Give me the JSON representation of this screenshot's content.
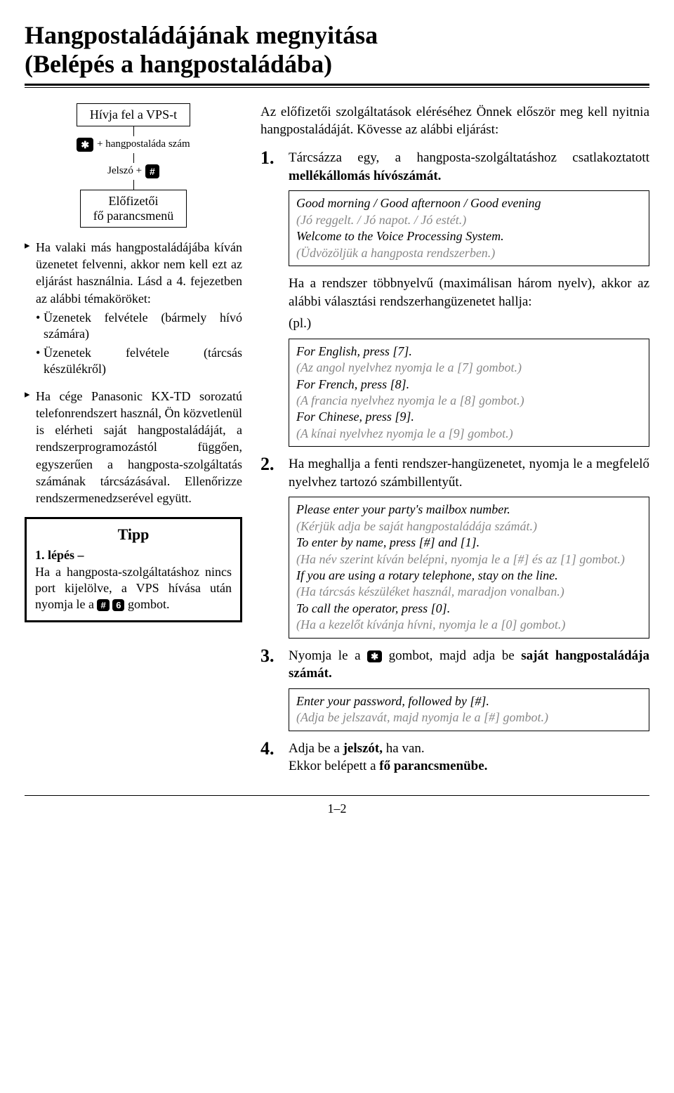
{
  "title_line1": "Hangpostaládájának megnyitása",
  "title_line2": "(Belépés a hangpostaládába)",
  "flowchart": {
    "box1": "Hívja fel a VPS-t",
    "row2_after": "+ hangpostaláda szám",
    "row3_before": "Jelszó + ",
    "box4_line1": "Előfizetői",
    "box4_line2": "fő parancsmenü"
  },
  "left_bullets": {
    "b1": "Ha valaki más hangpostaládájába kíván üzenetet felvenni, akkor nem kell ezt az eljárást használnia. Lásd a 4. fejezetben az alábbi témaköröket:",
    "b1s1": "Üzenetek felvétele (bármely hívó számára)",
    "b1s2": "Üzenetek felvétele (tárcsás készülékről)",
    "b2": "Ha cége Panasonic KX-TD sorozatú telefonrendszert használ, Ön közvetlenül is elérheti saját hangpostaládáját, a rendszerprogramozástól függően, egyszerűen a hangposta-szolgáltatás számának tárcsázásával. Ellenőrizze rendszermenedzserével együtt."
  },
  "tipp": {
    "title": "Tipp",
    "bold": "1. lépés –",
    "text1": "Ha a hangposta-szolgáltatáshoz nincs port kijelölve, a VPS hívása után nyomja le a ",
    "key1": "#",
    "key2": "6",
    "text2": " gombot."
  },
  "lead": "Az előfizetői szolgáltatások eléréséhez Önnek először meg kell nyitnia hangpostaládáját. Kövesse az alábbi eljárást:",
  "steps": {
    "s1_num": "1.",
    "s1": "Tárcsázza egy, a hangposta-szolgáltatáshoz csatlakoztatott ",
    "s1_bold": "mellékállomás hívószámát.",
    "prompt1_en1": "Good morning / Good afternoon / Good evening",
    "prompt1_hu1": "(Jó reggelt. / Jó napot. / Jó estét.)",
    "prompt1_en2": "Welcome to the Voice Processing System.",
    "prompt1_hu2": "(Üdvözöljük a hangposta rendszerben.)",
    "inter1a": "Ha a rendszer többnyelvű (maximálisan három nyelv), akkor az alábbi választási rendszerhangüzenetet hallja:",
    "inter1b": "(pl.)",
    "prompt2_en1": "For English, press [7].",
    "prompt2_hu1": "(Az angol nyelvhez nyomja le a [7] gombot.)",
    "prompt2_en2": "For French, press [8].",
    "prompt2_hu2": "(A francia nyelvhez nyomja le a [8] gombot.)",
    "prompt2_en3": "For Chinese, press [9].",
    "prompt2_hu3": "(A kínai nyelvhez nyomja le a [9] gombot.)",
    "s2_num": "2.",
    "s2": "Ha meghallja a fenti rendszer-hangüzenetet, nyomja le a megfelelő nyelvhez tartozó számbillentyűt.",
    "prompt3_en1": "Please enter your party's mailbox number.",
    "prompt3_hu1": "(Kérjük adja be saját hangpostaládája számát.)",
    "prompt3_en2": "To enter by name, press [#] and [1].",
    "prompt3_hu2": "(Ha név szerint kíván belépni, nyomja le a [#] és az [1] gombot.)",
    "prompt3_en3": "If you are using a rotary telephone, stay on the line.",
    "prompt3_hu3": "(Ha tárcsás készüléket használ, maradjon vonalban.)",
    "prompt3_en4": "To call the operator, press [0].",
    "prompt3_hu4": "(Ha a kezelőt kívánja hívni, nyomja le a [0] gombot.)",
    "s3_num": "3.",
    "s3a": "Nyomja le a ",
    "s3b": " gombot, majd adja be ",
    "s3_bold": "saját hangpostaládája számát.",
    "prompt4_en1": "Enter your password, followed by [#].",
    "prompt4_hu1": "(Adja be jelszavát, majd nyomja le a [#] gombot.)",
    "s4_num": "4.",
    "s4a": "Adja be a ",
    "s4_bold1": "jelszót,",
    "s4b": " ha van.",
    "s4c": "Ekkor belépett a ",
    "s4_bold2": "fő parancsmenübe."
  },
  "pagenum": "1–2"
}
